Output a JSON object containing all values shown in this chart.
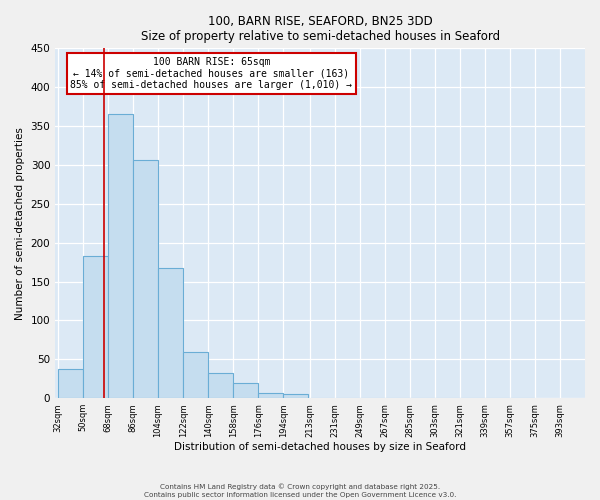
{
  "title": "100, BARN RISE, SEAFORD, BN25 3DD",
  "subtitle": "Size of property relative to semi-detached houses in Seaford",
  "xlabel": "Distribution of semi-detached houses by size in Seaford",
  "ylabel": "Number of semi-detached properties",
  "bar_values": [
    38,
    183,
    365,
    307,
    168,
    60,
    33,
    19,
    7,
    6,
    0,
    0,
    0,
    0,
    0,
    0,
    0,
    0,
    0
  ],
  "bin_labels": [
    "32sqm",
    "50sqm",
    "68sqm",
    "86sqm",
    "104sqm",
    "122sqm",
    "140sqm",
    "158sqm",
    "176sqm",
    "194sqm",
    "213sqm",
    "231sqm",
    "249sqm",
    "267sqm",
    "285sqm",
    "303sqm",
    "321sqm",
    "339sqm",
    "357sqm",
    "375sqm",
    "393sqm"
  ],
  "bin_edges": [
    32,
    50,
    68,
    86,
    104,
    122,
    140,
    158,
    176,
    194,
    213,
    231,
    249,
    267,
    285,
    303,
    321,
    339,
    357,
    375,
    393
  ],
  "bar_color": "#c5ddef",
  "bar_edge_color": "#6aadd5",
  "property_line_x": 65,
  "property_line_color": "#cc0000",
  "annotation_title": "100 BARN RISE: 65sqm",
  "annotation_line1": "← 14% of semi-detached houses are smaller (163)",
  "annotation_line2": "85% of semi-detached houses are larger (1,010) →",
  "annotation_box_color": "#cc0000",
  "ylim": [
    0,
    450
  ],
  "yticks": [
    0,
    50,
    100,
    150,
    200,
    250,
    300,
    350,
    400,
    450
  ],
  "plot_bg_color": "#dce9f5",
  "fig_bg_color": "#f0f0f0",
  "footer1": "Contains HM Land Registry data © Crown copyright and database right 2025.",
  "footer2": "Contains public sector information licensed under the Open Government Licence v3.0."
}
